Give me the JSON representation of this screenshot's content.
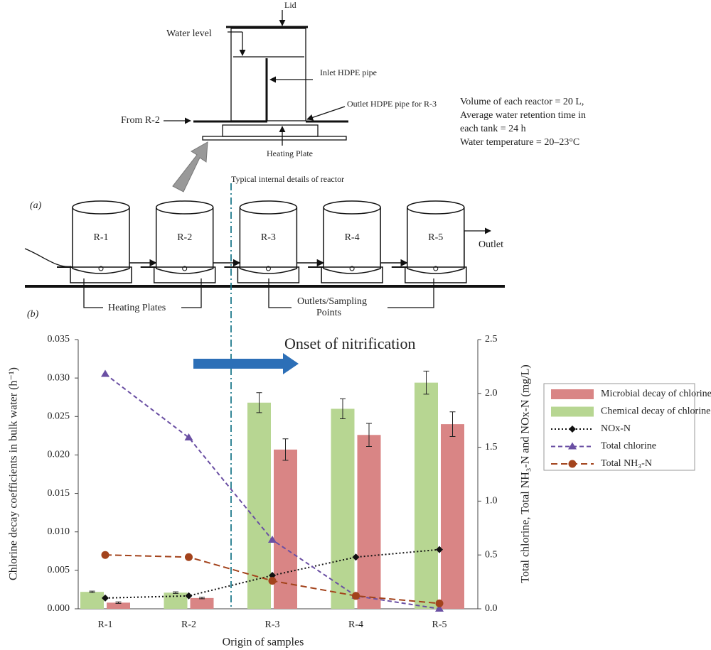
{
  "diagram": {
    "detail": {
      "lid": "Lid",
      "water_level": "Water level",
      "inlet": "Inlet HDPE pipe",
      "outlet": "Outlet HDPE pipe for R-3",
      "from": "From R-2",
      "plate": "Heating Plate",
      "caption": "Typical internal details of reactor"
    },
    "notes": [
      "Volume of each reactor = 20 L,",
      "Average water retention time in",
      "each tank = 24 h",
      "Water temperature = 20–23°C"
    ],
    "panel_a": "(a)",
    "panel_b": "(b)",
    "reactors": [
      "R-1",
      "R-2",
      "R-3",
      "R-4",
      "R-5"
    ],
    "outlet": "Outlet",
    "heating_plates": "Heating Plates",
    "sampling": [
      "Outlets/Sampling",
      "Points"
    ]
  },
  "chart_data": {
    "type": "bar",
    "annotation": "Onset of nitrification",
    "x_label": "Origin of samples",
    "y_label": "Chlorine decay coefficients in bulk water (h⁻¹)",
    "y2_label": "Total chlorine, Total NH₃-N and NOx-N (mg/L)",
    "categories": [
      "R-1",
      "R-2",
      "R-3",
      "R-4",
      "R-5"
    ],
    "ylim": [
      0,
      0.035
    ],
    "yticks": [
      {
        "value": 0,
        "label": "0.000"
      },
      0.005,
      {
        "value": 0.01,
        "label": "0.010"
      },
      0.015,
      {
        "value": 0.02,
        "label": "0.020"
      },
      0.025,
      {
        "value": 0.03,
        "label": "0.030"
      },
      0.035
    ],
    "y2lim": [
      0,
      2.5
    ],
    "y2ticks": [
      {
        "value": 0,
        "label": "0.0"
      },
      0.5,
      {
        "value": 1,
        "label": "1.0"
      },
      1.5,
      {
        "value": 2,
        "label": "2.0"
      },
      2.5
    ],
    "legend": "right",
    "series": [
      {
        "name": "Microbial decay of chlorine",
        "type": "bar",
        "color": "#d98585",
        "values": [
          0.0008,
          0.0014,
          0.0207,
          0.0226,
          0.024
        ],
        "errors": [
          0.0001,
          0.0001,
          0.0014,
          0.0015,
          0.0016
        ]
      },
      {
        "name": "Chemical decay of chlorine",
        "type": "bar",
        "color": "#b7d692",
        "values": [
          0.0022,
          0.0021,
          0.0268,
          0.026,
          0.0294
        ],
        "errors": [
          0.0001,
          0.0001,
          0.0013,
          0.0013,
          0.0015
        ]
      },
      {
        "name": "NOx-N",
        "type": "line",
        "axis": "y2",
        "color": "#111111",
        "marker": "diamond",
        "dash": "dotted",
        "values": [
          0.1,
          0.12,
          0.31,
          0.48,
          0.55
        ]
      },
      {
        "name": "Total chlorine",
        "type": "line",
        "axis": "y2",
        "color": "#6a4fa3",
        "marker": "triangle",
        "dash": "dashed",
        "values": [
          2.18,
          1.59,
          0.64,
          0.12,
          0.0
        ]
      },
      {
        "name": "Total NH₃-N",
        "type": "line",
        "axis": "y2",
        "color": "#a3431c",
        "marker": "circle",
        "dash": "longdash",
        "values": [
          0.5,
          0.48,
          0.26,
          0.12,
          0.05
        ]
      }
    ]
  }
}
